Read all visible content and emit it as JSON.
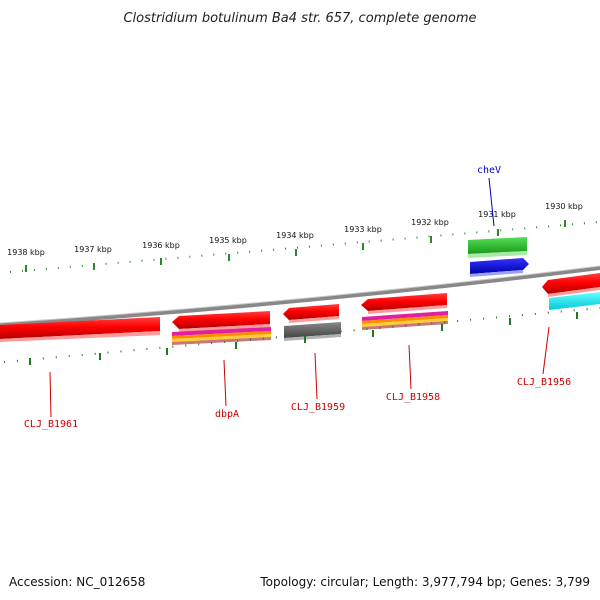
{
  "title": "Clostridium botulinum Ba4 str. 657, complete genome",
  "footer": {
    "accession": "Accession: NC_012658",
    "topology": "Topology: circular; Length: 3,977,794 bp; Genes: 3,799"
  },
  "colors": {
    "backbone": "#808080",
    "tick_outer": "#2a8a2a",
    "tick_inner": "#1f7a1f",
    "label_red": "#cc0000",
    "label_blue": "#0000cc"
  },
  "kbp_labels": [
    "1938 kbp",
    "1937 kbp",
    "1936 kbp",
    "1935 kbp",
    "1934 kbp",
    "1933 kbp",
    "1932 kbp",
    "1931 kbp",
    "1930 kbp"
  ],
  "genes": [
    {
      "id": "CLJ_B1961",
      "color": "#ff0000"
    },
    {
      "id": "dbpA",
      "color": "#ff0000"
    },
    {
      "id": "CLJ_B1959",
      "color": "#ff0000"
    },
    {
      "id": "CLJ_B1958",
      "color": "#ff0000"
    },
    {
      "id": "cheV",
      "color": "#22bb22"
    },
    {
      "id": "CLJ_B1956",
      "color": "#ff0000"
    }
  ],
  "gene_labels": [
    {
      "text": "CLJ_B1961",
      "color": "#cc0000"
    },
    {
      "text": "dbpA",
      "color": "#cc0000"
    },
    {
      "text": "CLJ_B1959",
      "color": "#cc0000"
    },
    {
      "text": "CLJ_B1958",
      "color": "#cc0000"
    },
    {
      "text": "cheV",
      "color": "#0000cc"
    },
    {
      "text": "CLJ_B1956",
      "color": "#cc0000"
    }
  ]
}
